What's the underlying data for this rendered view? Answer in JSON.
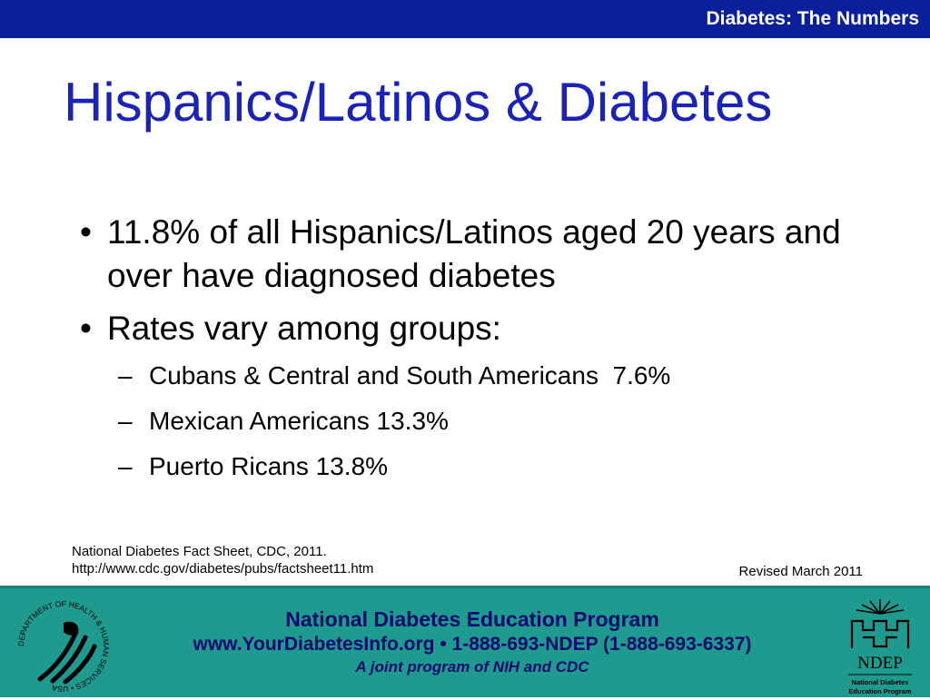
{
  "header": {
    "section_label": "Diabetes: The Numbers"
  },
  "slide": {
    "title": "Hispanics/Latinos & Diabetes",
    "bullets": [
      {
        "text": "11.8% of all Hispanics/Latinos aged 20 years and over have diagnosed diabetes"
      },
      {
        "text": "Rates vary among groups:"
      }
    ],
    "sub_bullets": [
      {
        "text": "Cubans & Central and South Americans  7.6%"
      },
      {
        "text": "Mexican Americans 13.3%"
      },
      {
        "text": "Puerto Ricans 13.8%"
      }
    ],
    "bullet_glyph": "•",
    "dash_glyph": "–"
  },
  "source": {
    "line1": "National Diabetes Fact Sheet, CDC, 2011.",
    "line2": "http://www.cdc.gov/diabetes/pubs/factsheet11.htm"
  },
  "revised": "Revised March 2011",
  "footer": {
    "program": "National Diabetes Education Program",
    "contact": "www.YourDiabetesInfo.org • 1-888-693-NDEP (1-888-693-6337)",
    "tagline": "A joint program of NIH and CDC",
    "left_logo": "hhs-seal-icon",
    "right_logo": "ndep-logo-icon",
    "logo_text": {
      "hhs_ring": "DEPARTMENT OF HEALTH & HUMAN SERVICES • USA",
      "ndep_acronym": "NDEP",
      "ndep_line1": "National Diabetes",
      "ndep_line2": "Education Program"
    }
  },
  "colors": {
    "header_bar": "#0a1f9a",
    "title": "#1a22b8",
    "footer_bg": "#1e9a8f",
    "footer_text": "#0a0a6e"
  }
}
